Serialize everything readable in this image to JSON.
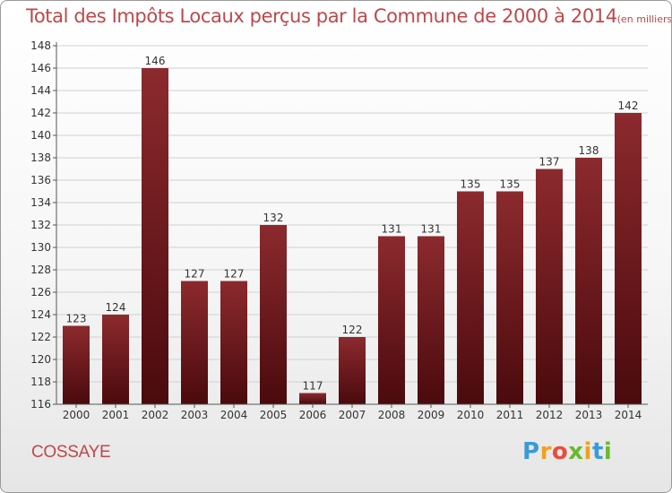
{
  "chart_data": {
    "type": "bar",
    "title": "Total des Impôts Locaux perçus par la Commune de 2000 à 2014",
    "title_unit": "(en milliers d'€)",
    "categories": [
      "2000",
      "2001",
      "2002",
      "2003",
      "2004",
      "2005",
      "2006",
      "2007",
      "2008",
      "2009",
      "2010",
      "2011",
      "2012",
      "2013",
      "2014"
    ],
    "values": [
      123,
      124,
      146,
      127,
      127,
      132,
      117,
      122,
      131,
      131,
      135,
      135,
      137,
      138,
      142
    ],
    "xlabel": "",
    "ylabel": "",
    "ylim": [
      116,
      148
    ],
    "yticks": [
      116,
      118,
      120,
      122,
      124,
      126,
      128,
      130,
      132,
      134,
      136,
      138,
      140,
      142,
      144,
      146,
      148
    ],
    "grid": true,
    "bar_color": "#7a1a1e"
  },
  "commune": "COSSAYE",
  "brand": {
    "letters": [
      "P",
      "r",
      "o",
      "x",
      "i",
      "t",
      "i"
    ],
    "colors": [
      "#3a9ad9",
      "#f0a020",
      "#e94d3b",
      "#6ab92f",
      "#f0a020",
      "#3a9ad9",
      "#6ab92f"
    ]
  },
  "colors": {
    "title": "#c0474a",
    "bar_light": "#8c2a2e",
    "bar_dark": "#4a0a0d"
  }
}
